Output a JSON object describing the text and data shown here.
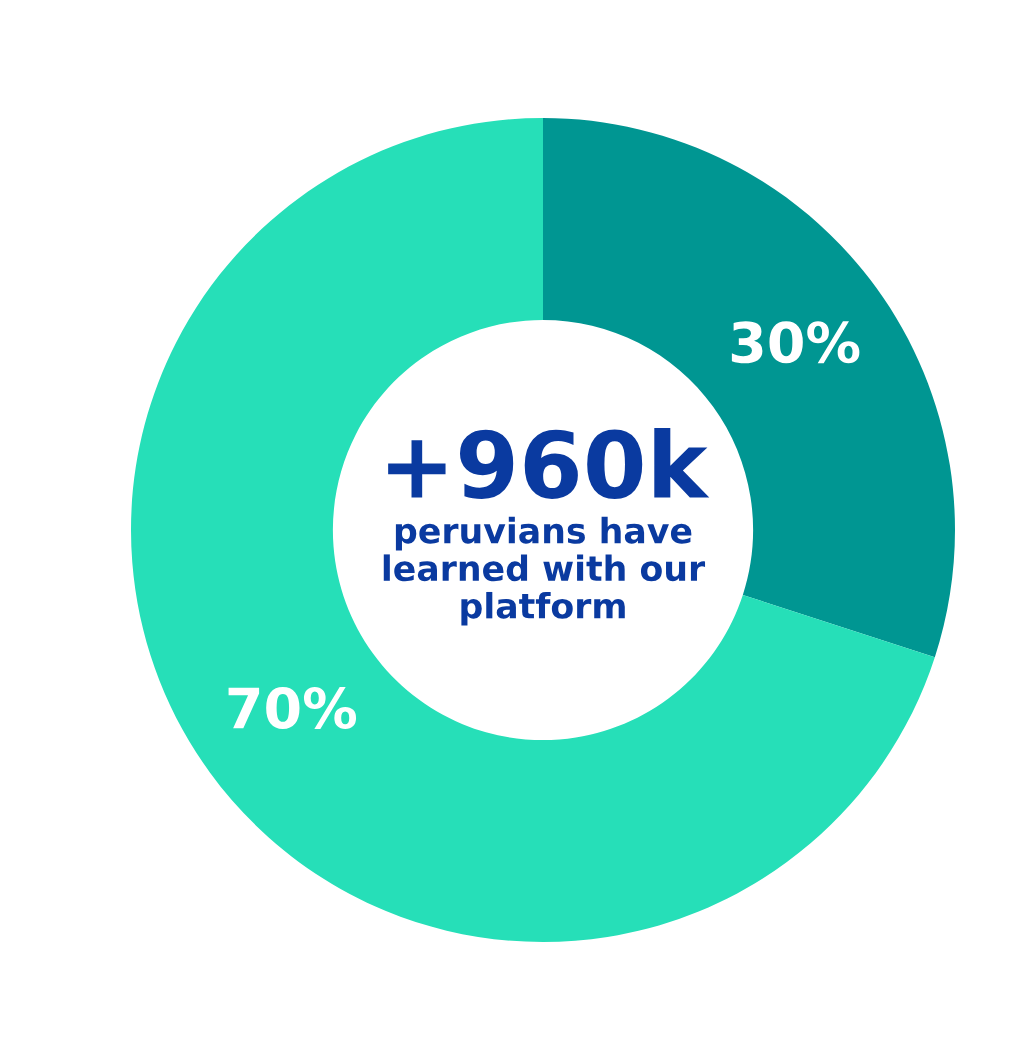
{
  "chart_data": {
    "type": "donut",
    "categories": [
      null,
      null
    ],
    "values": [
      30,
      70
    ],
    "colors": [
      "#009692",
      "#26dfb8"
    ],
    "data_labels": true,
    "value_labels": [
      "30%",
      "70%"
    ],
    "annotations": [
      "+960k",
      "peruvians have\nlearned with our\nplatform"
    ]
  }
}
